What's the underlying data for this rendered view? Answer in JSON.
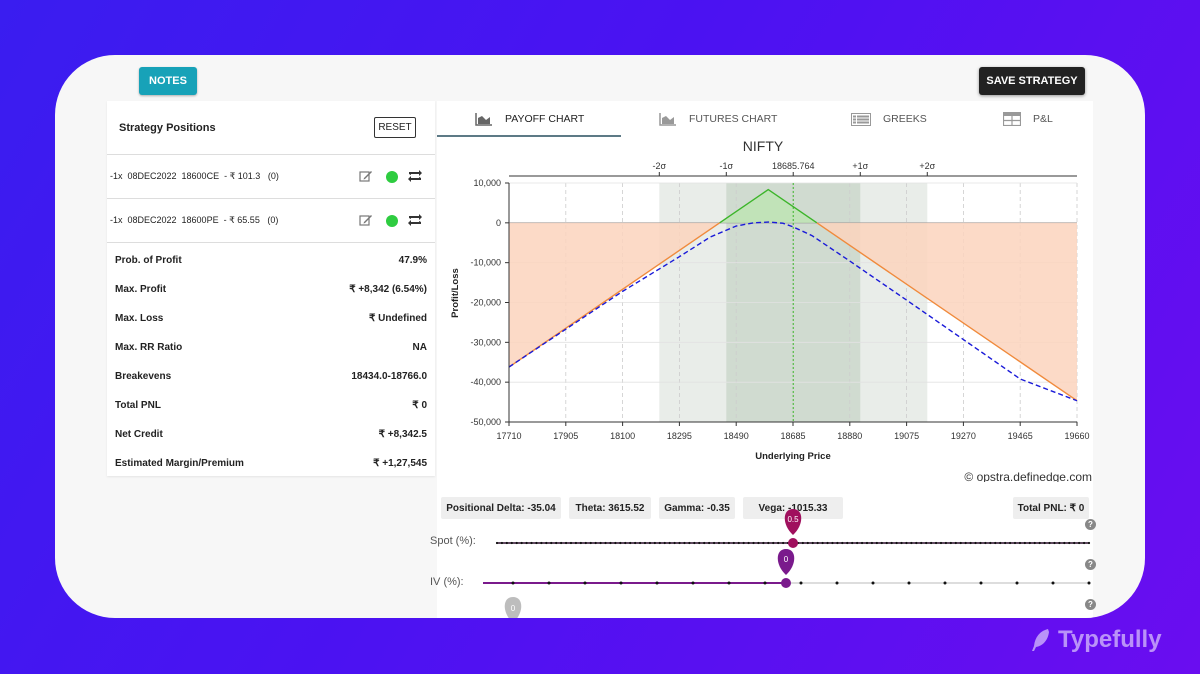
{
  "toolbar": {
    "notes_label": "NOTES",
    "save_label": "SAVE STRATEGY"
  },
  "positions": {
    "title": "Strategy Positions",
    "reset_label": "RESET",
    "items": [
      {
        "text": "-1x  08DEC2022  18600CE  - ₹ 101.3   (0)",
        "status_color": "#2ecc40"
      },
      {
        "text": "-1x  08DEC2022  18600PE  - ₹ 65.55   (0)",
        "status_color": "#2ecc40"
      }
    ]
  },
  "stats": [
    {
      "label": "Prob. of Profit",
      "value": "47.9%"
    },
    {
      "label": "Max. Profit",
      "value": "₹ +8,342 (6.54%)"
    },
    {
      "label": "Max. Loss",
      "value": "₹ Undefined"
    },
    {
      "label": "Max. RR Ratio",
      "value": "NA"
    },
    {
      "label": "Breakevens",
      "value": "18434.0-18766.0"
    },
    {
      "label": "Total PNL",
      "value": "₹ 0"
    },
    {
      "label": "Net Credit",
      "value": "₹ +8,342.5"
    },
    {
      "label": "Estimated Margin/Premium",
      "value": "₹ +1,27,545"
    }
  ],
  "tabs": [
    {
      "label": "PAYOFF CHART",
      "icon": "area-chart-icon",
      "active": true
    },
    {
      "label": "FUTURES CHART",
      "icon": "area-chart-icon",
      "active": false
    },
    {
      "label": "GREEKS",
      "icon": "list-icon",
      "active": false
    },
    {
      "label": "P&L",
      "icon": "table-icon",
      "active": false
    }
  ],
  "chart_data": {
    "type": "line",
    "title": "NIFTY",
    "xlabel": "Underlying Price",
    "ylabel": "Profit/Loss",
    "xlim": [
      17710,
      19660
    ],
    "ylim": [
      -50000,
      10000
    ],
    "xticks": [
      17710,
      17905,
      18100,
      18295,
      18490,
      18685,
      18880,
      19075,
      19270,
      19465,
      19660
    ],
    "yticks": [
      10000,
      0,
      -10000,
      -20000,
      -30000,
      -40000,
      -50000
    ],
    "ytick_labels": [
      "10,000",
      "0",
      "-10,000",
      "-20,000",
      "-30,000",
      "-40,000",
      "-50,000"
    ],
    "spot": 18685.764,
    "spot_label": "18685.764",
    "sigma_bands": [
      {
        "label": "-2σ",
        "from": 18226,
        "to": 19146
      },
      {
        "label": "-1σ",
        "from": 18456,
        "to": 18916
      },
      {
        "label": "+1σ",
        "value": 18916
      },
      {
        "label": "+2σ",
        "value": 19146
      }
    ],
    "sigma_labels": [
      {
        "label": "-2σ",
        "x": 18226
      },
      {
        "label": "-1σ",
        "x": 18456
      },
      {
        "label": "+1σ",
        "x": 18916
      },
      {
        "label": "+2σ",
        "x": 19146
      }
    ],
    "series": [
      {
        "kind": "expiry",
        "x": [
          17710,
          18600,
          19660
        ],
        "y": [
          -36200,
          8342,
          -44658
        ],
        "color_loss": "#f08a3c",
        "color_profit": "#3cb52a"
      },
      {
        "kind": "target",
        "x": [
          17710,
          17905,
          18100,
          18295,
          18400,
          18490,
          18550,
          18600,
          18650,
          18685,
          18750,
          18880,
          19075,
          19270,
          19465,
          19660
        ],
        "y": [
          -36200,
          -26700,
          -17200,
          -8500,
          -3600,
          -800,
          0,
          200,
          -100,
          -1000,
          -3200,
          -9600,
          -19400,
          -29300,
          -39200,
          -44658
        ],
        "color": "#1a1ad8"
      }
    ],
    "watermark": "© opstra.definedge.com"
  },
  "greeks": {
    "delta": "Positional Delta: -35.04",
    "theta": "Theta: 3615.52",
    "gamma": "Gamma: -0.35",
    "vega": "Vega: -1015.33",
    "total_pnl": "Total PNL: ₹ 0"
  },
  "sliders": {
    "spot_label": "Spot (%):",
    "spot_value": "0.5",
    "spot_fraction": 0.5,
    "iv_label": "IV (%):",
    "iv_value": "0",
    "iv_fraction": 0.5,
    "days_value": "0",
    "help": "?"
  },
  "brand": {
    "name": "Typefully"
  }
}
